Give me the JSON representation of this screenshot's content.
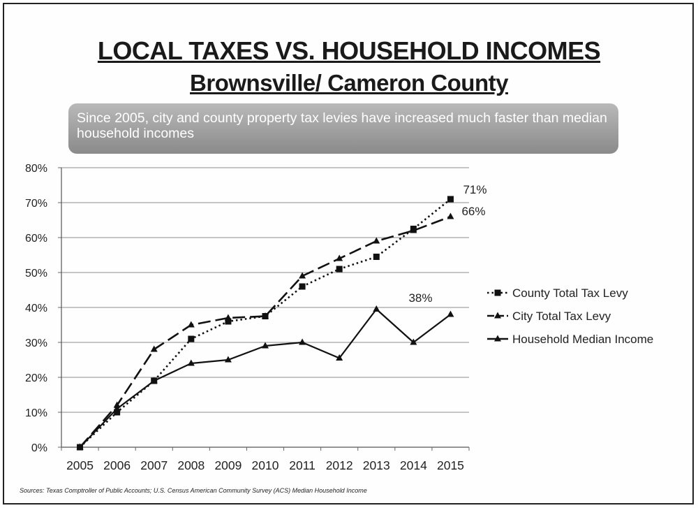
{
  "title": "LOCAL TAXES VS. HOUSEHOLD INCOMES",
  "subtitle": "Brownsville/ Cameron County",
  "banner_text": "Since 2005, city and county property tax levies have increased much faster than median household incomes",
  "source": "Sources: Texas Comptroller of Public Accounts; U.S. Census American Community Survey (ACS) Median Household Income",
  "chart_data": {
    "type": "line",
    "x": [
      "2005",
      "2006",
      "2007",
      "2008",
      "2009",
      "2010",
      "2011",
      "2012",
      "2013",
      "2014",
      "2015"
    ],
    "ylim": [
      0,
      80
    ],
    "yticks": [
      "0%",
      "10%",
      "20%",
      "30%",
      "40%",
      "50%",
      "60%",
      "70%",
      "80%"
    ],
    "grid": true,
    "legend_position": "right",
    "series": [
      {
        "name": "County Total Tax Levy",
        "marker": "square",
        "line": "dotted",
        "values": [
          0,
          10,
          19,
          31,
          36,
          37.5,
          46,
          51,
          54.5,
          62.5,
          71
        ]
      },
      {
        "name": "City Total Tax Levy",
        "marker": "triangle",
        "line": "dashed",
        "values": [
          0,
          12,
          28,
          35,
          37,
          37.5,
          49,
          54,
          59,
          62,
          66
        ]
      },
      {
        "name": "Household Median Income",
        "marker": "triangle",
        "line": "solid",
        "values": [
          0,
          11,
          19,
          24,
          25,
          29,
          30,
          25.5,
          39.5,
          30,
          38
        ]
      }
    ],
    "annotations": [
      {
        "text": "71%",
        "series": 0,
        "index": 10
      },
      {
        "text": "66%",
        "series": 1,
        "index": 10
      },
      {
        "text": "38%",
        "series": 2,
        "index": 10
      }
    ]
  }
}
